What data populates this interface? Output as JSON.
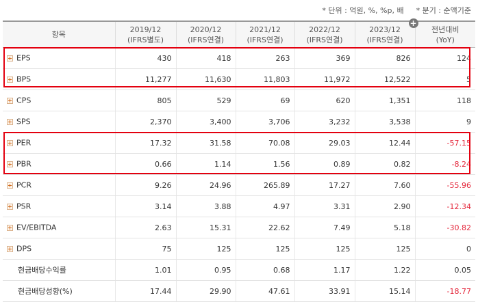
{
  "notes": {
    "unit": "* 단위 : 억원, %, %p, 배",
    "period": "* 분기 : 순액기준"
  },
  "table": {
    "header": {
      "item": "항목",
      "columns": [
        {
          "line1": "2019/12",
          "line2": "(IFRS별도)"
        },
        {
          "line1": "2020/12",
          "line2": "(IFRS연결)"
        },
        {
          "line1": "2021/12",
          "line2": "(IFRS연결)"
        },
        {
          "line1": "2022/12",
          "line2": "(IFRS연결)"
        },
        {
          "line1": "2023/12",
          "line2": "(IFRS연결)"
        },
        {
          "line1": "전년대비",
          "line2": "(YoY)"
        }
      ]
    },
    "rows": [
      {
        "label": "EPS",
        "values": [
          "430",
          "418",
          "263",
          "369",
          "826",
          "124"
        ]
      },
      {
        "label": "BPS",
        "values": [
          "11,277",
          "11,630",
          "11,803",
          "11,972",
          "12,522",
          "5"
        ]
      },
      {
        "label": "CPS",
        "values": [
          "805",
          "529",
          "69",
          "620",
          "1,351",
          "118"
        ]
      },
      {
        "label": "SPS",
        "values": [
          "2,370",
          "3,400",
          "3,706",
          "3,232",
          "3,538",
          "9"
        ]
      },
      {
        "label": "PER",
        "values": [
          "17.32",
          "31.58",
          "70.08",
          "29.03",
          "12.44",
          "-57.15"
        ]
      },
      {
        "label": "PBR",
        "values": [
          "0.66",
          "1.14",
          "1.56",
          "0.89",
          "0.82",
          "-8.24"
        ]
      },
      {
        "label": "PCR",
        "values": [
          "9.26",
          "24.96",
          "265.89",
          "17.27",
          "7.60",
          "-55.96"
        ]
      },
      {
        "label": "PSR",
        "values": [
          "3.14",
          "3.88",
          "4.97",
          "3.31",
          "2.90",
          "-12.34"
        ]
      },
      {
        "label": "EV/EBITDA",
        "values": [
          "2.63",
          "15.31",
          "22.62",
          "7.49",
          "5.18",
          "-30.82"
        ]
      },
      {
        "label": "DPS",
        "values": [
          "75",
          "125",
          "125",
          "125",
          "125",
          "0"
        ]
      },
      {
        "label": "현금배당수익률",
        "values": [
          "1.01",
          "0.95",
          "0.68",
          "1.17",
          "1.22",
          "0.05"
        ]
      },
      {
        "label": "현금배당성향(%)",
        "values": [
          "17.44",
          "29.90",
          "47.61",
          "33.91",
          "15.14",
          "-18.77"
        ]
      }
    ]
  },
  "colors": {
    "negative": "#e4273b",
    "highlight_border": "#e3000f"
  }
}
